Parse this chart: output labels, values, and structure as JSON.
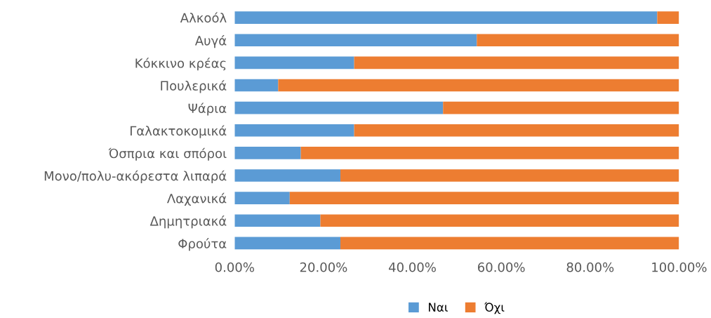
{
  "chart_data": {
    "type": "bar",
    "orientation": "horizontal",
    "stacked": true,
    "categories": [
      "Αλκοόλ",
      "Αυγά",
      "Κόκκινο κρέας",
      "Πουλερικά",
      "Ψάρια",
      "Γαλακτοκομικά",
      "Όσπρια και σπόροι",
      "Μονο/πολυ-ακόρεστα λιπαρά",
      "Λαχανικά",
      "Δημητριακά",
      "Φρούτα"
    ],
    "series": [
      {
        "name": "Ναι",
        "color": "#5b9bd5",
        "values": [
          95.1,
          54.5,
          26.9,
          9.8,
          46.9,
          26.9,
          14.9,
          23.8,
          12.4,
          19.3,
          23.8
        ]
      },
      {
        "name": "Όχι",
        "color": "#ed7d31",
        "values": [
          4.9,
          45.5,
          73.1,
          90.2,
          53.1,
          73.1,
          85.1,
          76.2,
          87.6,
          80.7,
          76.2
        ]
      }
    ],
    "xlim": [
      0,
      100
    ],
    "xticks": [
      {
        "value": 0,
        "label": "0.00%"
      },
      {
        "value": 20,
        "label": "20.00%"
      },
      {
        "value": 40,
        "label": "40.00%"
      },
      {
        "value": 60,
        "label": "60.00%"
      },
      {
        "value": 80,
        "label": "80.00%"
      },
      {
        "value": 100,
        "label": "100.00%"
      }
    ],
    "grid": false,
    "legend": "bottom"
  }
}
